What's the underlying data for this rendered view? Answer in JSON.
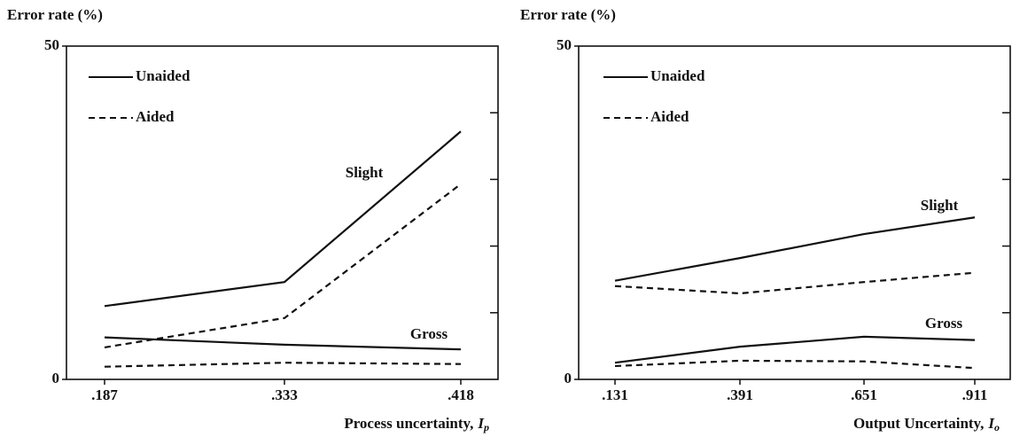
{
  "chart_data": [
    {
      "type": "line",
      "ylabel": "Error rate (%)",
      "xlabel": "Process uncertainty,",
      "xlabel_symbol": {
        "base": "I",
        "sub": "p"
      },
      "categories": [
        ".187",
        ".333",
        ".418"
      ],
      "ylim": [
        0,
        50
      ],
      "yticks": [
        0,
        50
      ],
      "minor_yticks": [
        10,
        20,
        30,
        40
      ],
      "color": "#111111",
      "legend": [
        {
          "name": "Unaided",
          "dash": false
        },
        {
          "name": "Aided",
          "dash": true
        }
      ],
      "groups": [
        {
          "name": "Slight",
          "values": [
            [
              11.0,
              14.6,
              37.2
            ],
            [
              4.8,
              9.2,
              29.3
            ]
          ]
        },
        {
          "name": "Gross",
          "values": [
            [
              6.3,
              5.2,
              4.5
            ],
            [
              1.9,
              2.5,
              2.3
            ]
          ]
        }
      ]
    },
    {
      "type": "line",
      "ylabel": "Error rate (%)",
      "xlabel": "Output Uncertainty,",
      "xlabel_symbol": {
        "base": "I",
        "sub": "o"
      },
      "categories": [
        ".131",
        ".391",
        ".651",
        ".911"
      ],
      "ylim": [
        0,
        50
      ],
      "yticks": [
        0,
        50
      ],
      "minor_yticks": [
        10,
        20,
        30,
        40
      ],
      "color": "#111111",
      "legend": [
        {
          "name": "Unaided",
          "dash": false
        },
        {
          "name": "Aided",
          "dash": true
        }
      ],
      "groups": [
        {
          "name": "Slight",
          "values": [
            [
              14.8,
              18.2,
              21.8,
              24.3
            ],
            [
              14.0,
              12.9,
              14.6,
              16.0
            ]
          ]
        },
        {
          "name": "Gross",
          "values": [
            [
              2.5,
              4.9,
              6.4,
              5.9
            ],
            [
              2.0,
              2.8,
              2.7,
              1.7
            ]
          ]
        }
      ]
    }
  ]
}
